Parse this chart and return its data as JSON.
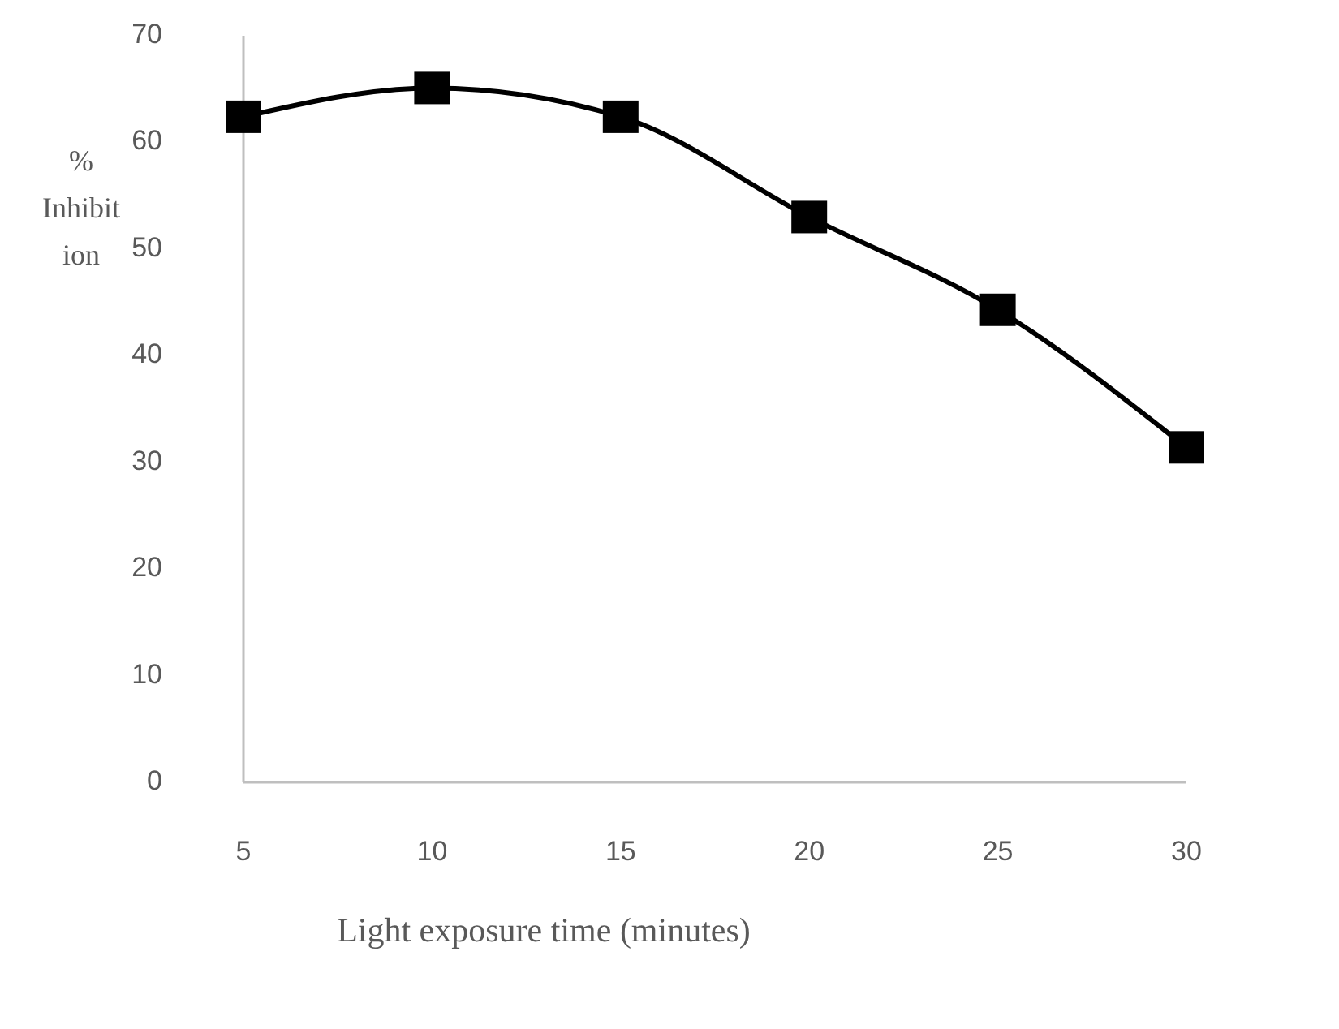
{
  "chart_data": {
    "type": "line",
    "xlabel": "Light exposure time (minutes)",
    "ylabel": "% Inhibition",
    "x": [
      5,
      10,
      15,
      20,
      25,
      30
    ],
    "series": [
      {
        "color": "#000000",
        "values": [
          62.4,
          65.1,
          62.4,
          53.0,
          44.3,
          31.4
        ]
      }
    ],
    "xlim": [
      5,
      30
    ],
    "xticks": [
      5,
      10,
      15,
      20,
      25,
      30
    ],
    "ylim": [
      0,
      70
    ],
    "yticks": [
      0,
      10,
      20,
      30,
      40,
      50,
      60,
      70
    ],
    "marker": "square",
    "line_style": "solid"
  }
}
